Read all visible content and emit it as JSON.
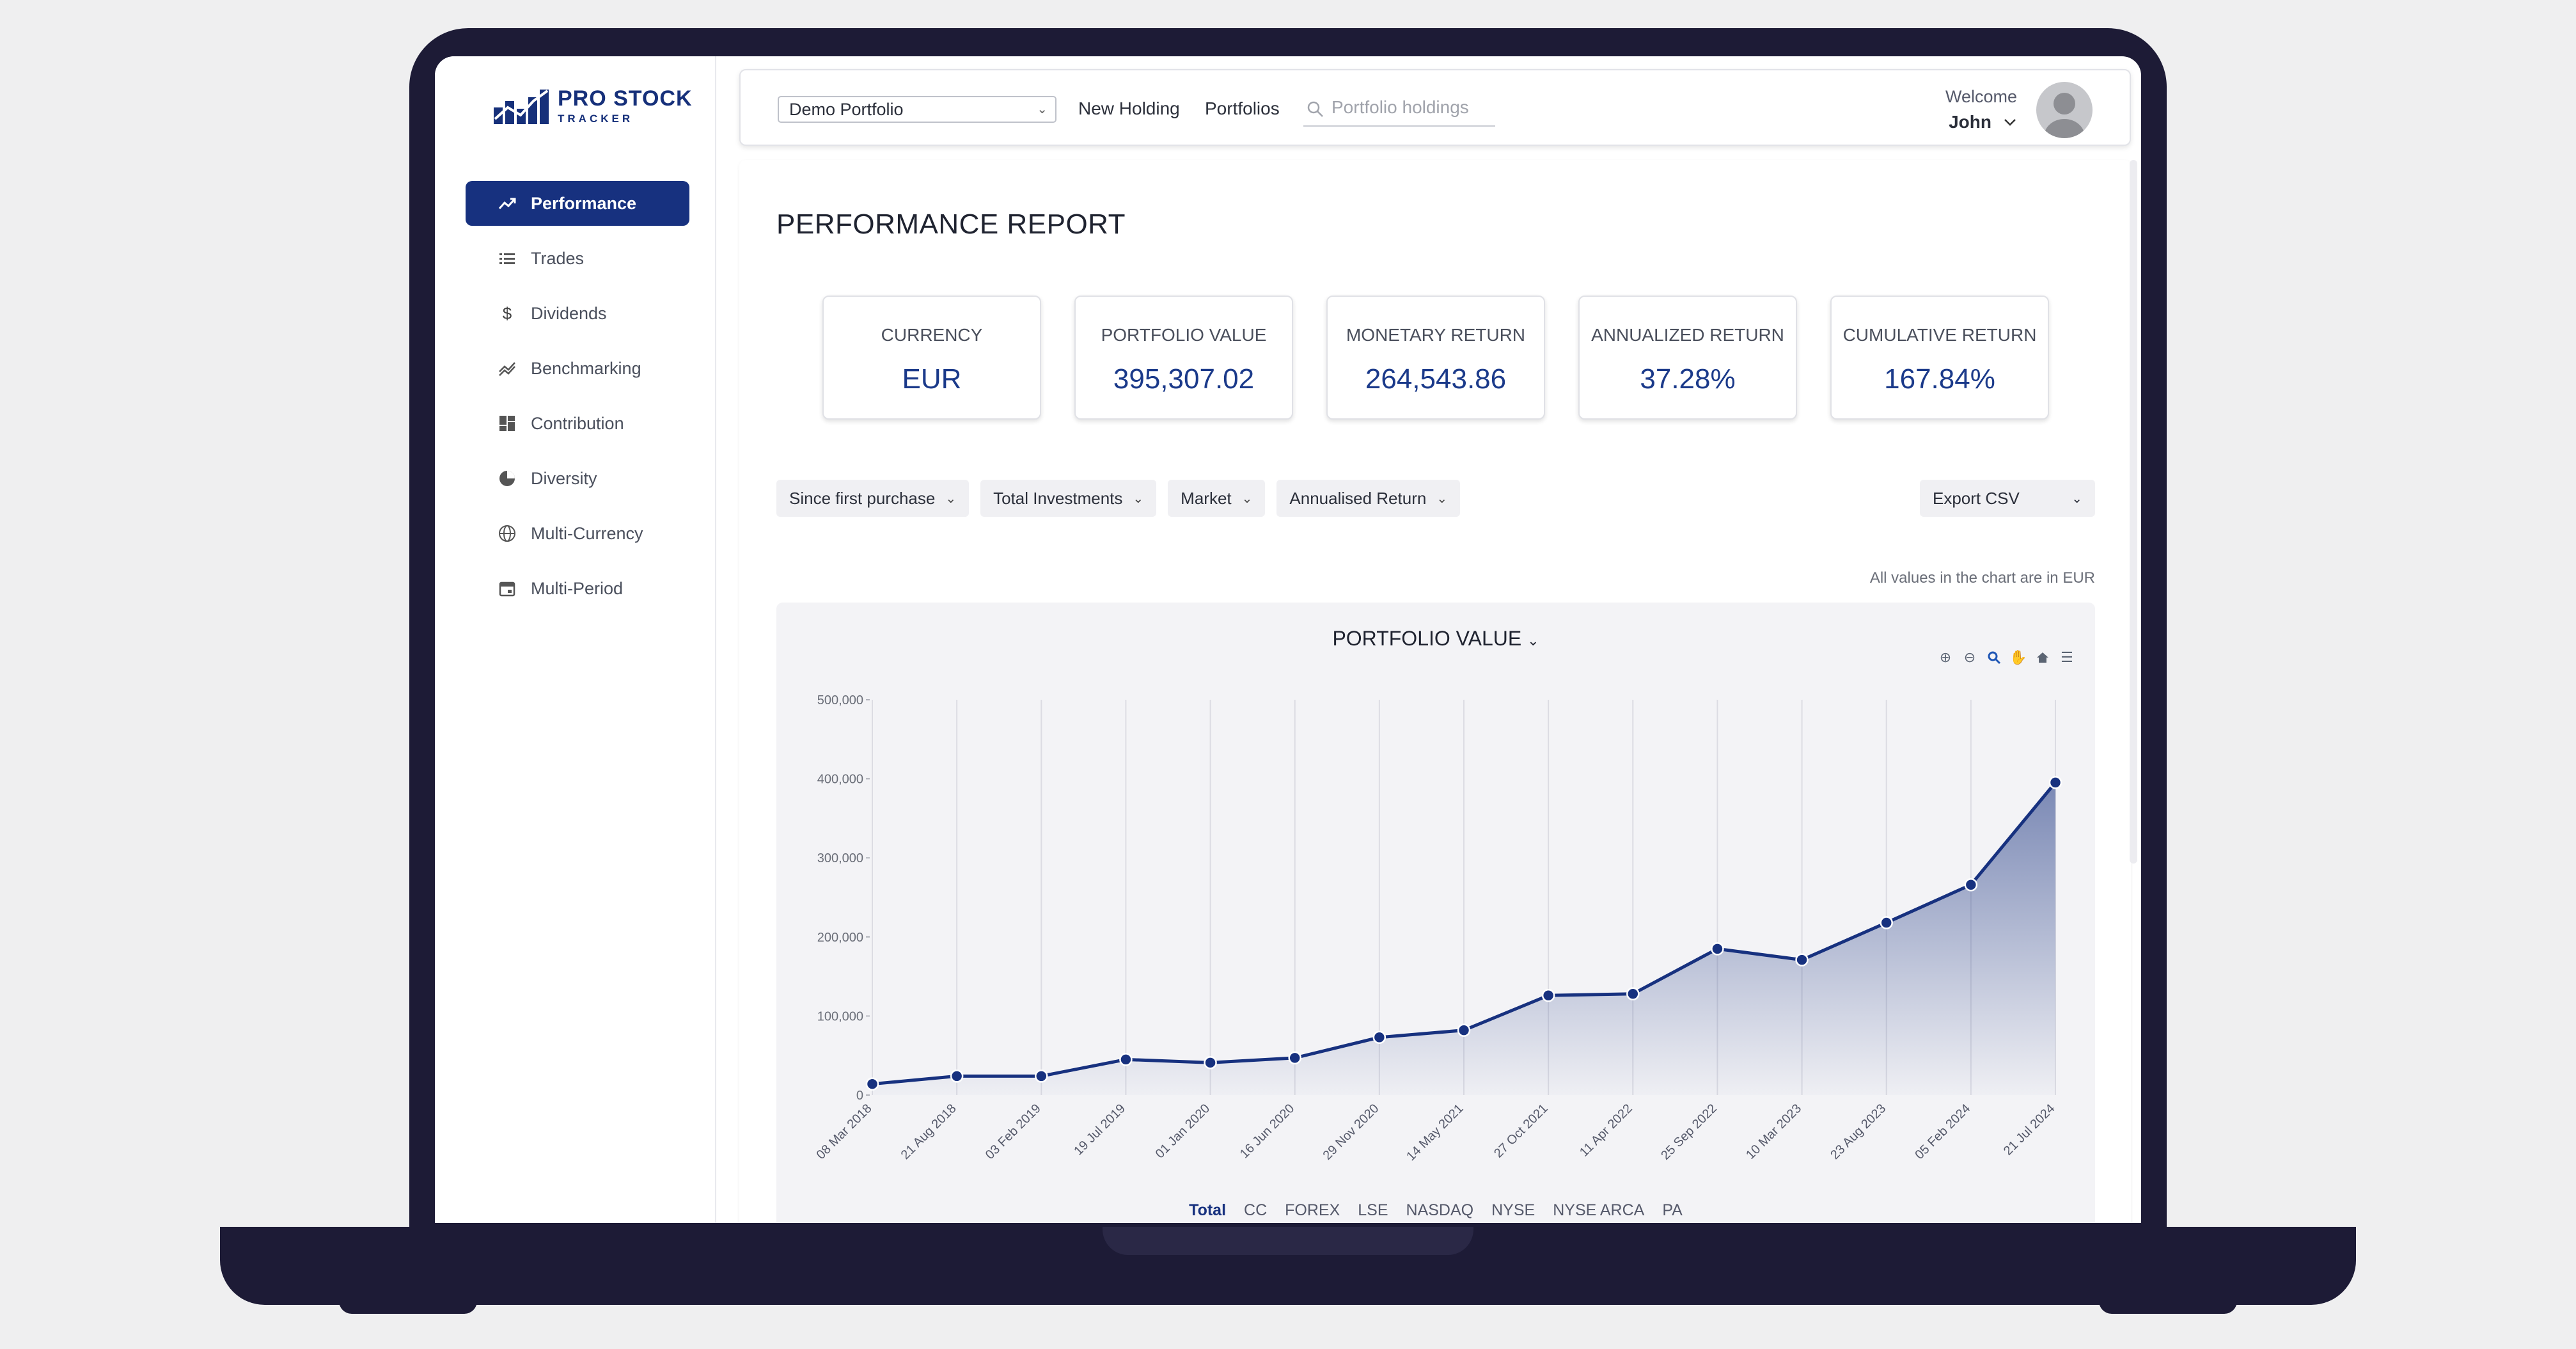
{
  "app": {
    "logo_line1": "PRO STOCK",
    "logo_line2": "TRACKER",
    "brand_color": "#17317f"
  },
  "sidebar": {
    "items": [
      {
        "label": "Performance",
        "icon": "trend-up-icon",
        "active": true
      },
      {
        "label": "Trades",
        "icon": "list-icon"
      },
      {
        "label": "Dividends",
        "icon": "dollar-icon"
      },
      {
        "label": "Benchmarking",
        "icon": "benchmark-icon"
      },
      {
        "label": "Contribution",
        "icon": "grid-icon"
      },
      {
        "label": "Diversity",
        "icon": "pie-icon"
      },
      {
        "label": "Multi-Currency",
        "icon": "globe-icon"
      },
      {
        "label": "Multi-Period",
        "icon": "calendar-icon"
      }
    ]
  },
  "topbar": {
    "portfolio_selected": "Demo Portfolio",
    "new_holding": "New Holding",
    "portfolios": "Portfolios",
    "search_placeholder": "Portfolio holdings",
    "welcome_label": "Welcome",
    "user_name": "John"
  },
  "main": {
    "title": "PERFORMANCE REPORT",
    "cards": [
      {
        "label": "CURRENCY",
        "value": "EUR"
      },
      {
        "label": "PORTFOLIO VALUE",
        "value": "395,307.02"
      },
      {
        "label": "MONETARY RETURN",
        "value": "264,543.86"
      },
      {
        "label": "ANNUALIZED RETURN",
        "value": "37.28%"
      },
      {
        "label": "CUMULATIVE RETURN",
        "value": "167.84%"
      }
    ],
    "filters": [
      "Since first purchase",
      "Total Investments",
      "Market",
      "Annualised Return"
    ],
    "export_label": "Export CSV",
    "chart_note": "All values in the chart are in EUR"
  },
  "chart_data": {
    "type": "area",
    "title": "PORTFOLIO VALUE",
    "x": [
      "08 Mar 2018",
      "21 Aug 2018",
      "03 Feb 2019",
      "19 Jul 2019",
      "01 Jan 2020",
      "16 Jun 2020",
      "29 Nov 2020",
      "14 May 2021",
      "27 Oct 2021",
      "11 Apr 2022",
      "25 Sep 2022",
      "10 Mar 2023",
      "23 Aug 2023",
      "05 Feb 2024",
      "21 Jul 2024"
    ],
    "series": [
      {
        "name": "Total",
        "values": [
          14000,
          24000,
          24000,
          45000,
          41000,
          47000,
          73000,
          82000,
          126000,
          128000,
          185000,
          171000,
          218000,
          266000,
          395307
        ]
      }
    ],
    "y_ticks": [
      "0",
      "100,000",
      "200,000",
      "300,000",
      "400,000",
      "500,000"
    ],
    "ylim": [
      0,
      500000
    ],
    "line_color": "#17317f",
    "grid": true,
    "legend": [
      "Total",
      "CC",
      "FOREX",
      "LSE",
      "NASDAQ",
      "NYSE",
      "NYSE ARCA",
      "PA"
    ],
    "legend_active": "Total"
  }
}
